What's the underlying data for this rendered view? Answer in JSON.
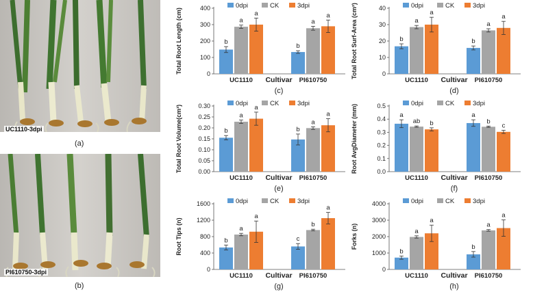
{
  "photos": [
    {
      "label": "UC1110-3dpi",
      "caption": "(a)"
    },
    {
      "label": "PI610750-3dpi",
      "caption": "(b)"
    }
  ],
  "colors": {
    "0dpi": "#5b9bd5",
    "CK": "#a5a5a5",
    "3dpi": "#ed7d31",
    "photo_bg": "#c9c6c1"
  },
  "chart_data": [
    {
      "panel": "(c)",
      "type": "bar",
      "ylabel": "Total Root Length (cm)",
      "xlabel": "Cultivar",
      "categories": [
        "UC1110",
        "PI610750"
      ],
      "ylim": [
        0,
        400
      ],
      "yticks": [
        0,
        100,
        200,
        300,
        400
      ],
      "legend": [
        "0dpi",
        "CK",
        "3dpi"
      ],
      "series": [
        {
          "name": "0dpi",
          "values": [
            148,
            133
          ],
          "errors": [
            18,
            8
          ],
          "letters": [
            "b",
            "b"
          ]
        },
        {
          "name": "CK",
          "values": [
            287,
            278
          ],
          "errors": [
            10,
            12
          ],
          "letters": [
            "a",
            "a"
          ]
        },
        {
          "name": "3dpi",
          "values": [
            300,
            290
          ],
          "errors": [
            40,
            38
          ],
          "letters": [
            "a",
            "a"
          ]
        }
      ]
    },
    {
      "panel": "(d)",
      "type": "bar",
      "ylabel": "Total Root Surf-Area (cm²)",
      "xlabel": "Cultivar",
      "categories": [
        "UC1110",
        "PI610750"
      ],
      "ylim": [
        0,
        40
      ],
      "yticks": [
        0,
        10,
        20,
        30,
        40
      ],
      "legend": [
        "0dpi",
        "CK",
        "3dpi"
      ],
      "series": [
        {
          "name": "0dpi",
          "values": [
            16.8,
            15.8
          ],
          "errors": [
            1.5,
            1.2
          ],
          "letters": [
            "b",
            "b"
          ]
        },
        {
          "name": "CK",
          "values": [
            28.5,
            26.5
          ],
          "errors": [
            1.0,
            1.0
          ],
          "letters": [
            "a",
            "a"
          ]
        },
        {
          "name": "3dpi",
          "values": [
            30,
            28
          ],
          "errors": [
            4.5,
            4.0
          ],
          "letters": [
            "a",
            "a"
          ]
        }
      ]
    },
    {
      "panel": "(e)",
      "type": "bar",
      "ylabel": "Total Root Volume(cm³)",
      "xlabel": "Cultivar",
      "categories": [
        "UC1110",
        "PI610750"
      ],
      "ylim": [
        0,
        0.3
      ],
      "yticks": [
        0,
        0.05,
        0.1,
        0.15,
        0.2,
        0.25,
        0.3
      ],
      "legend": [
        "0dpi",
        "CK",
        "3dpi"
      ],
      "series": [
        {
          "name": "0dpi",
          "values": [
            0.155,
            0.147
          ],
          "errors": [
            0.01,
            0.025
          ],
          "letters": [
            "b",
            "b"
          ]
        },
        {
          "name": "CK",
          "values": [
            0.228,
            0.199
          ],
          "errors": [
            0.008,
            0.006
          ],
          "letters": [
            "a",
            "a"
          ]
        },
        {
          "name": "3dpi",
          "values": [
            0.242,
            0.212
          ],
          "errors": [
            0.03,
            0.03
          ],
          "letters": [
            "a",
            "a"
          ]
        }
      ]
    },
    {
      "panel": "(f)",
      "type": "bar",
      "ylabel": "Root AvgDiameter (mm)",
      "xlabel": "Cultivar",
      "categories": [
        "UC1110",
        "PI610750"
      ],
      "ylim": [
        0,
        0.5
      ],
      "yticks": [
        0,
        0.1,
        0.2,
        0.3,
        0.4,
        0.5
      ],
      "legend": [
        "0dpi",
        "CK",
        "3dpi"
      ],
      "series": [
        {
          "name": "0dpi",
          "values": [
            0.365,
            0.37
          ],
          "errors": [
            0.03,
            0.025
          ],
          "letters": [
            "a",
            "a"
          ]
        },
        {
          "name": "CK",
          "values": [
            0.343,
            0.342
          ],
          "errors": [
            0.005,
            0.005
          ],
          "letters": [
            "ab",
            "b"
          ]
        },
        {
          "name": "3dpi",
          "values": [
            0.322,
            0.303
          ],
          "errors": [
            0.012,
            0.012
          ],
          "letters": [
            "b",
            "c"
          ]
        }
      ]
    },
    {
      "panel": "(g)",
      "type": "bar",
      "ylabel": "Root Tips (n)",
      "xlabel": "Cultivar",
      "categories": [
        "UC1110",
        "PI610750"
      ],
      "ylim": [
        0,
        1600
      ],
      "yticks": [
        0,
        400,
        800,
        1200,
        1600
      ],
      "legend": [
        "0dpi",
        "CK",
        "3dpi"
      ],
      "series": [
        {
          "name": "0dpi",
          "values": [
            535,
            560
          ],
          "errors": [
            60,
            70
          ],
          "letters": [
            "b",
            "c"
          ]
        },
        {
          "name": "CK",
          "values": [
            850,
            960
          ],
          "errors": [
            30,
            20
          ],
          "letters": [
            "a",
            "b"
          ]
        },
        {
          "name": "3dpi",
          "values": [
            920,
            1250
          ],
          "errors": [
            260,
            140
          ],
          "letters": [
            "a",
            "a"
          ]
        }
      ]
    },
    {
      "panel": "(h)",
      "type": "bar",
      "ylabel": "Forks (n)",
      "xlabel": "Cultivar",
      "categories": [
        "UC1110",
        "PI610750"
      ],
      "ylim": [
        0,
        4000
      ],
      "yticks": [
        0,
        1000,
        2000,
        3000,
        4000
      ],
      "legend": [
        "0dpi",
        "CK",
        "3dpi"
      ],
      "series": [
        {
          "name": "0dpi",
          "values": [
            720,
            920
          ],
          "errors": [
            100,
            170
          ],
          "letters": [
            "b",
            "b"
          ]
        },
        {
          "name": "CK",
          "values": [
            1980,
            2380
          ],
          "errors": [
            70,
            50
          ],
          "letters": [
            "a",
            "a"
          ]
        },
        {
          "name": "3dpi",
          "values": [
            2200,
            2520
          ],
          "errors": [
            500,
            500
          ],
          "letters": [
            "a",
            "a"
          ]
        }
      ]
    }
  ]
}
